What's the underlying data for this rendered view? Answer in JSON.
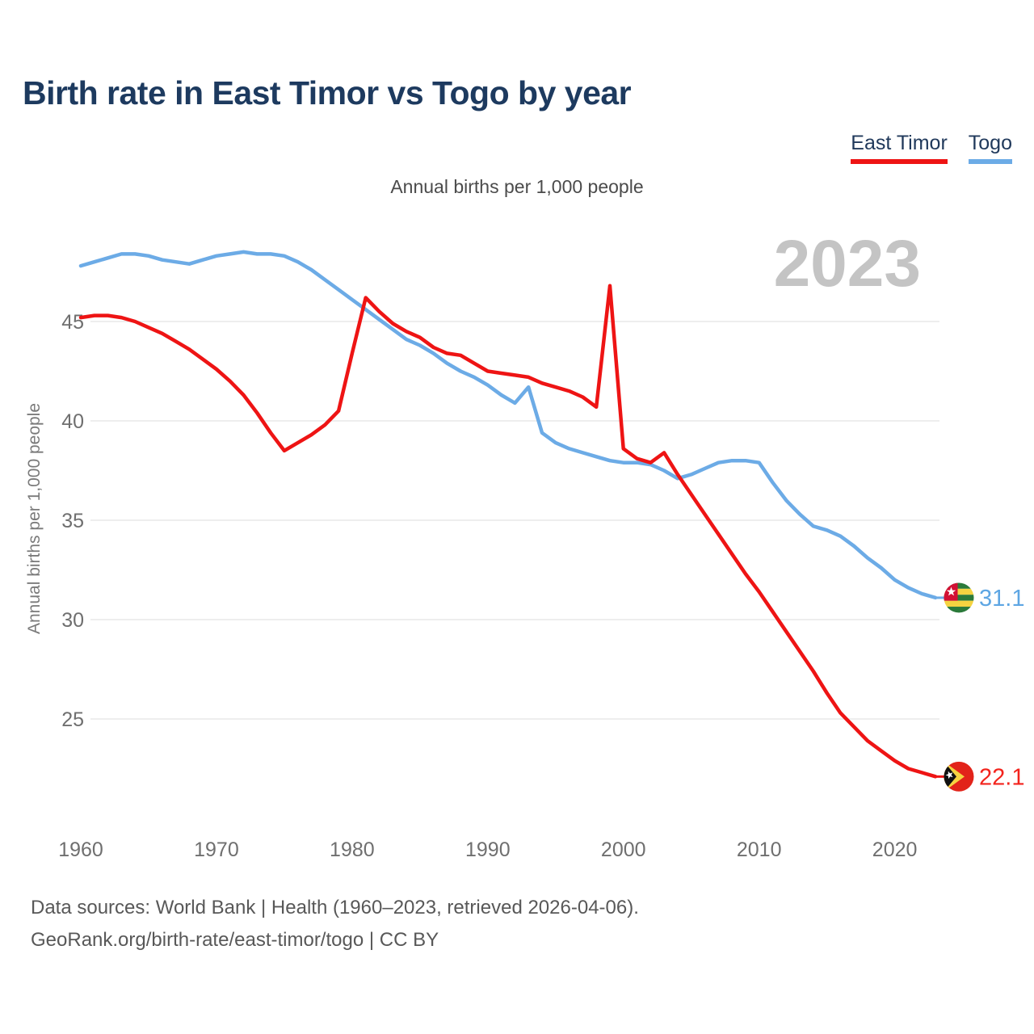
{
  "title": "Birth rate in East Timor vs Togo by year",
  "subtitle": "Annual births per 1,000 people",
  "y_axis_label": "Annual births per 1,000 people",
  "watermark": "2023",
  "legend": {
    "items": [
      {
        "label": "East Timor",
        "color": "#ee1414"
      },
      {
        "label": "Togo",
        "color": "#6cabe6"
      }
    ]
  },
  "footer": {
    "line1": "Data sources: World Bank | Health (1960–2023, retrieved 2026-04-06).",
    "line2": "GeoRank.org/birth-rate/east-timor/togo | CC BY"
  },
  "colors": {
    "east_timor": "#ee1414",
    "togo": "#6cabe6",
    "east_timor_label": "#f3231c",
    "togo_label": "#5ea6e3",
    "grid": "#e9e9e9",
    "tick": "#6f6f6f",
    "title": "#1d3a5f",
    "watermark": "#c4c4c4"
  },
  "chart_data": {
    "type": "line",
    "title": "Birth rate in East Timor vs Togo by year",
    "subtitle": "Annual births per 1,000 people",
    "ylabel": "Annual births per 1,000 people",
    "xlabel": "",
    "grid": "horizontal",
    "legend_position": "top-right",
    "xlim": [
      1960,
      2023
    ],
    "ylim": [
      21.5,
      49.5
    ],
    "xticks": [
      1960,
      1970,
      1980,
      1990,
      2000,
      2010,
      2020
    ],
    "yticks": [
      25,
      30,
      35,
      40,
      45
    ],
    "x": [
      1960,
      1961,
      1962,
      1963,
      1964,
      1965,
      1966,
      1967,
      1968,
      1969,
      1970,
      1971,
      1972,
      1973,
      1974,
      1975,
      1976,
      1977,
      1978,
      1979,
      1980,
      1981,
      1982,
      1983,
      1984,
      1985,
      1986,
      1987,
      1988,
      1989,
      1990,
      1991,
      1992,
      1993,
      1994,
      1995,
      1996,
      1997,
      1998,
      1999,
      2000,
      2001,
      2002,
      2003,
      2004,
      2005,
      2006,
      2007,
      2008,
      2009,
      2010,
      2011,
      2012,
      2013,
      2014,
      2015,
      2016,
      2017,
      2018,
      2019,
      2020,
      2021,
      2022,
      2023
    ],
    "series": [
      {
        "name": "East Timor",
        "color": "#ee1414",
        "end_label": "22.1",
        "end_value": 22.1,
        "values": [
          45.2,
          45.3,
          45.3,
          45.2,
          45.0,
          44.7,
          44.4,
          44.0,
          43.6,
          43.1,
          42.6,
          42.0,
          41.3,
          40.4,
          39.4,
          38.5,
          38.9,
          39.3,
          39.8,
          40.5,
          43.4,
          46.2,
          45.5,
          44.9,
          44.5,
          44.2,
          43.7,
          43.4,
          43.3,
          42.9,
          42.5,
          42.4,
          42.3,
          42.2,
          41.9,
          41.7,
          41.5,
          41.2,
          40.7,
          46.8,
          38.6,
          38.1,
          37.9,
          38.4,
          37.3,
          36.3,
          35.3,
          34.3,
          33.3,
          32.3,
          31.4,
          30.4,
          29.4,
          28.4,
          27.4,
          26.3,
          25.3,
          24.6,
          23.9,
          23.4,
          22.9,
          22.5,
          22.3,
          22.1
        ]
      },
      {
        "name": "Togo",
        "color": "#6cabe6",
        "end_label": "31.1",
        "end_value": 31.1,
        "values": [
          47.8,
          48.0,
          48.2,
          48.4,
          48.4,
          48.3,
          48.1,
          48.0,
          47.9,
          48.1,
          48.3,
          48.4,
          48.5,
          48.4,
          48.4,
          48.3,
          48.0,
          47.6,
          47.1,
          46.6,
          46.1,
          45.6,
          45.1,
          44.6,
          44.1,
          43.8,
          43.4,
          42.9,
          42.5,
          42.2,
          41.8,
          41.3,
          40.9,
          41.7,
          39.4,
          38.9,
          38.6,
          38.4,
          38.2,
          38.0,
          37.9,
          37.9,
          37.8,
          37.5,
          37.1,
          37.3,
          37.6,
          37.9,
          38.0,
          38.0,
          37.9,
          36.9,
          36.0,
          35.3,
          34.7,
          34.5,
          34.2,
          33.7,
          33.1,
          32.6,
          32.0,
          31.6,
          31.3,
          31.1
        ]
      }
    ]
  }
}
